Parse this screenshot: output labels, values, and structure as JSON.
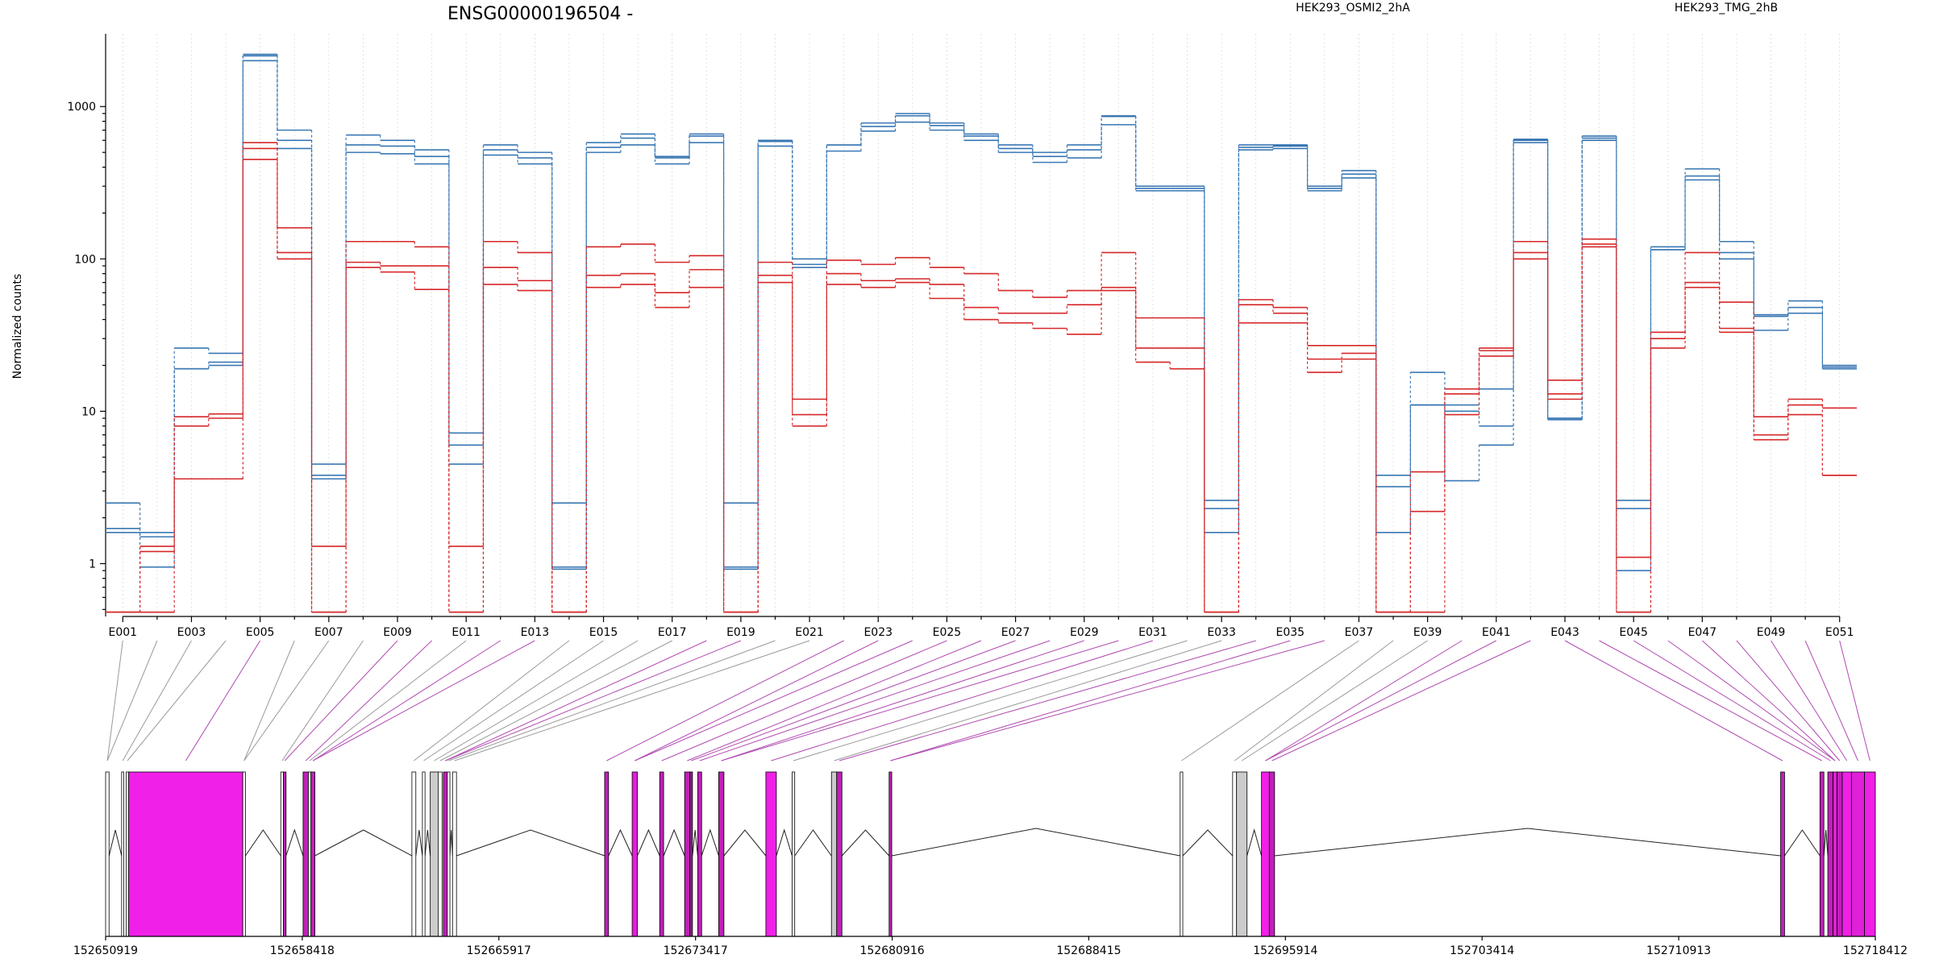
{
  "chart_data": {
    "type": "line",
    "title": "ENSG00000196504 -",
    "ylabel": "Normalized counts",
    "xlabel": "",
    "yscale": "log",
    "ylim": [
      0.45,
      3000
    ],
    "yticks": [
      1,
      10,
      100,
      1000
    ],
    "ytick_labels": [
      "1",
      "10",
      "100",
      "1000"
    ],
    "exons": [
      "E001",
      "E002",
      "E003",
      "E004",
      "E005",
      "E006",
      "E007",
      "E008",
      "E009",
      "E010",
      "E011",
      "E012",
      "E013",
      "E014",
      "E015",
      "E016",
      "E017",
      "E018",
      "E019",
      "E020",
      "E021",
      "E022",
      "E023",
      "E024",
      "E025",
      "E026",
      "E027",
      "E028",
      "E029",
      "E030",
      "E031",
      "E032",
      "E033",
      "E034",
      "E035",
      "E036",
      "E037",
      "E038",
      "E039",
      "E040",
      "E041",
      "E042",
      "E043",
      "E044",
      "E045",
      "E046",
      "E047",
      "E048",
      "E049",
      "E050",
      "E051"
    ],
    "xtick_labels": [
      "E001",
      "E003",
      "E005",
      "E007",
      "E009",
      "E011",
      "E013",
      "E015",
      "E017",
      "E019",
      "E021",
      "E023",
      "E025",
      "E027",
      "E029",
      "E031",
      "E033",
      "E035",
      "E037",
      "E039",
      "E041",
      "E043",
      "E045",
      "E047",
      "E049",
      "E051"
    ],
    "legend": [
      {
        "label": "HEK293_OSMI2_2hA",
        "color": "#d62728"
      },
      {
        "label": "HEK293_TMG_2hB",
        "color": "#3a78b4"
      }
    ],
    "series": [
      {
        "name": "HEK293_TMG_2hB",
        "color": "#3a78b4",
        "values": [
          2.5,
          1.6,
          26,
          24,
          2200,
          700,
          4.5,
          650,
          600,
          520,
          7.2,
          560,
          500,
          2.5,
          580,
          660,
          470,
          660,
          2.5,
          600,
          100,
          560,
          780,
          900,
          780,
          660,
          560,
          500,
          560,
          870,
          300,
          300,
          2.6,
          560,
          560,
          300,
          380,
          3.8,
          18,
          11,
          14,
          610,
          9,
          640,
          2.6,
          120,
          390,
          130,
          43,
          53,
          20
        ]
      },
      {
        "name": "HEK293_TMG_2hB",
        "color": "#3a78b4",
        "values": [
          1.7,
          1.5,
          19,
          21,
          2150,
          600,
          3.8,
          560,
          550,
          470,
          6,
          520,
          460,
          0.95,
          540,
          620,
          460,
          640,
          0.95,
          590,
          92,
          560,
          740,
          870,
          750,
          640,
          530,
          470,
          520,
          860,
          290,
          290,
          2.3,
          540,
          550,
          290,
          360,
          3.2,
          11,
          10,
          8,
          600,
          9,
          620,
          2.3,
          115,
          350,
          110,
          42,
          48,
          19.5
        ]
      },
      {
        "name": "HEK293_TMG_2hB",
        "color": "#3a78b4",
        "values": [
          1.6,
          0.95,
          19,
          20,
          2000,
          530,
          3.6,
          500,
          490,
          420,
          4.5,
          480,
          420,
          0.92,
          500,
          560,
          420,
          580,
          0.92,
          550,
          88,
          510,
          690,
          790,
          700,
          600,
          500,
          430,
          460,
          760,
          280,
          280,
          1.6,
          520,
          530,
          280,
          340,
          1.6,
          11,
          3.5,
          6,
          580,
          8.8,
          600,
          0.9,
          115,
          330,
          100,
          34,
          44,
          19
        ]
      },
      {
        "name": "HEK293_OSMI2_2hA",
        "color": "#d62728",
        "values": [
          0.48,
          1.3,
          9.2,
          9.6,
          580,
          160,
          1.3,
          130,
          130,
          120,
          1.3,
          130,
          110,
          0.48,
          120,
          125,
          95,
          105,
          0.48,
          95,
          12,
          98,
          92,
          102,
          88,
          80,
          62,
          56,
          62,
          110,
          41,
          41,
          0.48,
          54,
          48,
          27,
          27,
          0.48,
          4,
          14,
          26,
          130,
          16,
          135,
          1.1,
          33,
          110,
          52,
          9.2,
          12,
          10.5
        ]
      },
      {
        "name": "HEK293_OSMI2_2hA",
        "color": "#d62728",
        "values": [
          0.48,
          1.2,
          8,
          9,
          530,
          110,
          0.48,
          95,
          90,
          90,
          0.48,
          88,
          72,
          0.48,
          78,
          80,
          60,
          85,
          0.48,
          78,
          9.5,
          80,
          72,
          74,
          68,
          48,
          44,
          44,
          50,
          65,
          26,
          26,
          0.48,
          50,
          44,
          22,
          24,
          0.48,
          2.2,
          13,
          25,
          110,
          13,
          125,
          0.48,
          30,
          70,
          35,
          7,
          11,
          3.8
        ]
      },
      {
        "name": "HEK293_OSMI2_2hA",
        "color": "#d62728",
        "values": [
          0.48,
          0.48,
          3.6,
          3.6,
          450,
          100,
          0.48,
          88,
          82,
          63,
          0.48,
          68,
          62,
          0.48,
          65,
          68,
          48,
          65,
          0.48,
          70,
          8,
          68,
          65,
          70,
          55,
          40,
          38,
          35,
          32,
          62,
          21,
          19,
          0.48,
          38,
          38,
          18,
          22,
          0.48,
          0.48,
          9.5,
          23,
          100,
          12,
          120,
          0.48,
          26,
          65,
          33,
          6.5,
          9.5,
          3.8
        ]
      }
    ],
    "gene_model": {
      "coordinate_labels": [
        "152650919",
        "152658418",
        "152665917",
        "152673417",
        "152680916",
        "152688415",
        "152695914",
        "152703414",
        "152710913",
        "152718412"
      ],
      "xlim": [
        152650919,
        152718412
      ],
      "features": [
        {
          "start": 152650919,
          "end": 152651050,
          "color": "#ffffff"
        },
        {
          "start": 152651530,
          "end": 152651610,
          "color": "#ffffff"
        },
        {
          "start": 152651700,
          "end": 152651800,
          "color": "#ffffff"
        },
        {
          "start": 152651800,
          "end": 152656150,
          "color": "#f020e8"
        },
        {
          "start": 152656150,
          "end": 152656250,
          "color": "#ffffff"
        },
        {
          "start": 152657600,
          "end": 152657700,
          "color": "#ffffff"
        },
        {
          "start": 152657700,
          "end": 152657800,
          "color": "#c020b8"
        },
        {
          "start": 152658450,
          "end": 152658650,
          "color": "#c020b8"
        },
        {
          "start": 152658650,
          "end": 152658750,
          "color": "#ffffff"
        },
        {
          "start": 152658750,
          "end": 152658900,
          "color": "#c020b8"
        },
        {
          "start": 152662600,
          "end": 152662750,
          "color": "#ffffff"
        },
        {
          "start": 152663000,
          "end": 152663100,
          "color": "#ffffff"
        },
        {
          "start": 152663300,
          "end": 152663600,
          "color": "#cccccc"
        },
        {
          "start": 152663600,
          "end": 152663750,
          "color": "#ffffff"
        },
        {
          "start": 152663800,
          "end": 152663950,
          "color": "#c020b8"
        },
        {
          "start": 152663950,
          "end": 152664050,
          "color": "#ffffff"
        },
        {
          "start": 152664150,
          "end": 152664300,
          "color": "#ffffff"
        },
        {
          "start": 152669950,
          "end": 152670100,
          "color": "#c020b8"
        },
        {
          "start": 152671000,
          "end": 152671200,
          "color": "#e020d8"
        },
        {
          "start": 152672050,
          "end": 152672200,
          "color": "#c020b8"
        },
        {
          "start": 152673000,
          "end": 152673200,
          "color": "#c020b8"
        },
        {
          "start": 152673200,
          "end": 152673300,
          "color": "#902088"
        },
        {
          "start": 152673500,
          "end": 152673650,
          "color": "#c020b8"
        },
        {
          "start": 152674300,
          "end": 152674500,
          "color": "#c020b8"
        },
        {
          "start": 152676100,
          "end": 152676500,
          "color": "#f020e8"
        },
        {
          "start": 152677100,
          "end": 152677200,
          "color": "#ffffff"
        },
        {
          "start": 152678600,
          "end": 152678800,
          "color": "#cccccc"
        },
        {
          "start": 152678800,
          "end": 152679000,
          "color": "#c020b8"
        },
        {
          "start": 152680800,
          "end": 152680900,
          "color": "#c020b8"
        },
        {
          "start": 152691900,
          "end": 152692000,
          "color": "#ffffff"
        },
        {
          "start": 152693900,
          "end": 152694050,
          "color": "#ffffff"
        },
        {
          "start": 152694050,
          "end": 152694450,
          "color": "#cccccc"
        },
        {
          "start": 152695000,
          "end": 152695300,
          "color": "#f020e8"
        },
        {
          "start": 152695300,
          "end": 152695500,
          "color": "#c020b8"
        },
        {
          "start": 152714800,
          "end": 152714950,
          "color": "#c020b8"
        },
        {
          "start": 152716300,
          "end": 152716450,
          "color": "#c020b8"
        },
        {
          "start": 152716600,
          "end": 152716800,
          "color": "#c020b8"
        },
        {
          "start": 152716800,
          "end": 152716950,
          "color": "#e020d8"
        },
        {
          "start": 152716950,
          "end": 152717150,
          "color": "#c020b8"
        },
        {
          "start": 152717150,
          "end": 152717500,
          "color": "#f020e8"
        },
        {
          "start": 152717500,
          "end": 152718000,
          "color": "#e020d8"
        },
        {
          "start": 152718000,
          "end": 152718412,
          "color": "#f020e8"
        }
      ]
    }
  }
}
